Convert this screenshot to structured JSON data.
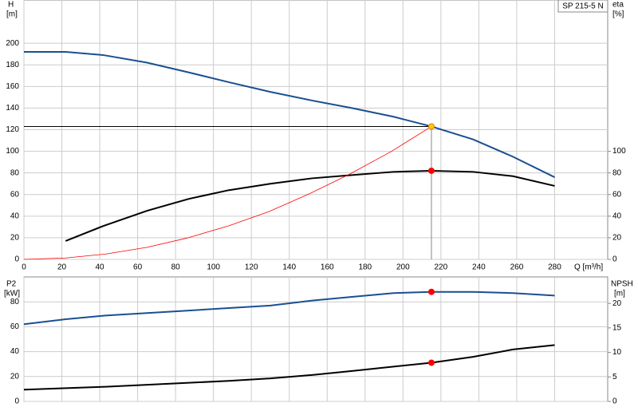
{
  "chart_data": [
    {
      "type": "line",
      "title": "SP 215-5 N",
      "y_label": "H",
      "y_unit": "[m]",
      "y2_label": "eta",
      "y2_unit": "[%]",
      "x_label": "Q [m³/h]",
      "xlim": [
        0,
        308
      ],
      "xticks": [
        0,
        20,
        40,
        60,
        80,
        100,
        120,
        140,
        160,
        180,
        200,
        220,
        240,
        260,
        280
      ],
      "ylim": [
        0,
        240
      ],
      "yticks": [
        0,
        20,
        40,
        60,
        80,
        100,
        120,
        140,
        160,
        180,
        200
      ],
      "y2lim": [
        0,
        240
      ],
      "y2ticks": [
        0,
        20,
        40,
        60,
        80,
        100
      ],
      "grid": true,
      "series": [
        {
          "color": "#1a4f91",
          "x": [
            0,
            22,
            42,
            65,
            87,
            108,
            130,
            152,
            173,
            195,
            215,
            237,
            258,
            280
          ],
          "values": [
            192,
            192,
            189,
            182,
            173,
            164,
            155,
            147,
            140,
            132,
            123,
            111,
            95,
            76
          ]
        },
        {
          "color": "#000000",
          "axis": "y2",
          "x": [
            22,
            42,
            65,
            87,
            108,
            130,
            152,
            173,
            195,
            215,
            237,
            258,
            280
          ],
          "values": [
            17,
            31,
            45,
            56,
            64,
            70,
            75,
            78,
            81,
            82,
            81,
            77,
            68
          ]
        },
        {
          "color": "#ff0000",
          "x": [
            0,
            22,
            43,
            65,
            86,
            108,
            129,
            151,
            172,
            194,
            215
          ],
          "values": [
            0,
            1.3,
            4.9,
            11.2,
            19.7,
            31,
            44,
            61,
            79,
            100,
            123
          ]
        },
        {
          "style": "point",
          "guide": true,
          "color": "#ffcc00",
          "x": [
            215
          ],
          "values": [
            123
          ]
        },
        {
          "style": "point",
          "color": "#ff0000",
          "axis": "y2",
          "x": [
            215
          ],
          "values": [
            82
          ]
        }
      ]
    },
    {
      "type": "line",
      "y_label": "P2",
      "y_unit": "[kW]",
      "y2_label": "NPSH",
      "y2_unit": "[m]",
      "xlim": [
        0,
        308
      ],
      "xticks": [
        0,
        20,
        40,
        60,
        80,
        100,
        120,
        140,
        160,
        180,
        200,
        220,
        240,
        260,
        280
      ],
      "ylim": [
        0,
        100
      ],
      "yticks": [
        0,
        20,
        40,
        60,
        80
      ],
      "y2lim": [
        0,
        25.4
      ],
      "y2ticks": [
        0,
        5,
        10,
        15,
        20
      ],
      "grid": true,
      "series": [
        {
          "color": "#1a4f91",
          "x": [
            0,
            22,
            43,
            65,
            87,
            108,
            130,
            152,
            173,
            195,
            215,
            237,
            258,
            280
          ],
          "values": [
            62,
            66,
            69,
            71,
            73,
            75,
            77,
            81,
            84,
            87,
            88,
            88,
            87,
            85
          ]
        },
        {
          "color": "#000000",
          "axis": "y2",
          "x": [
            0,
            22,
            43,
            65,
            87,
            108,
            130,
            152,
            173,
            195,
            215,
            237,
            258,
            280
          ],
          "values": [
            2.4,
            2.7,
            3,
            3.4,
            3.8,
            4.2,
            4.7,
            5.4,
            6.2,
            7.1,
            7.9,
            9.1,
            10.6,
            11.5
          ]
        },
        {
          "style": "point",
          "color": "#ff0000",
          "x": [
            215
          ],
          "values": [
            88
          ]
        },
        {
          "style": "point",
          "color": "#ff0000",
          "axis": "y2",
          "x": [
            215
          ],
          "values": [
            7.9
          ]
        }
      ]
    }
  ]
}
